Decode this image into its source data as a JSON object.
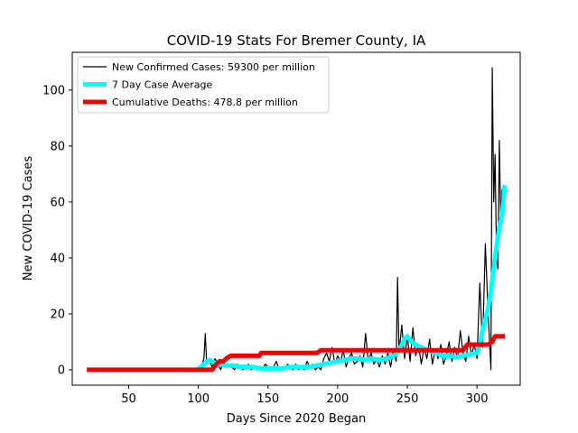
{
  "chart_data": {
    "type": "line",
    "title": "COVID-19 Stats For Bremer County, IA",
    "xlabel": "Days Since 2020 Began",
    "ylabel": "New COVID-19 Cases",
    "xlim": [
      9.5,
      331
    ],
    "ylim": [
      -5.5,
      113.5
    ],
    "xticks": [
      50,
      100,
      150,
      200,
      250,
      300
    ],
    "yticks": [
      0,
      20,
      40,
      60,
      80,
      100
    ],
    "grid": false,
    "legend_position": "top-left",
    "series": [
      {
        "name": "New Confirmed Cases: 59300 per million",
        "color": "#000000",
        "style": "thin",
        "x": [
          20,
          30,
          40,
          50,
          60,
          70,
          80,
          90,
          100,
          102,
          104,
          105,
          106,
          108,
          110,
          112,
          114,
          116,
          118,
          120,
          122,
          124,
          126,
          128,
          130,
          132,
          134,
          136,
          138,
          140,
          142,
          144,
          146,
          148,
          150,
          152,
          154,
          156,
          158,
          160,
          162,
          164,
          166,
          168,
          170,
          172,
          174,
          176,
          178,
          180,
          182,
          184,
          186,
          188,
          190,
          192,
          194,
          196,
          198,
          200,
          202,
          204,
          206,
          208,
          210,
          212,
          214,
          216,
          218,
          220,
          222,
          224,
          226,
          228,
          230,
          232,
          234,
          236,
          238,
          240,
          242,
          243,
          244,
          246,
          248,
          250,
          252,
          254,
          256,
          258,
          260,
          262,
          264,
          266,
          268,
          270,
          272,
          274,
          276,
          278,
          280,
          282,
          284,
          286,
          288,
          290,
          292,
          294,
          296,
          298,
          300,
          302,
          304,
          306,
          308,
          310,
          311,
          312,
          313,
          314,
          315,
          316,
          317,
          318,
          319,
          320
        ],
        "y": [
          0,
          0,
          0,
          0,
          0,
          0,
          0,
          0,
          0,
          1,
          4,
          13,
          2,
          3,
          1,
          4,
          2,
          0,
          3,
          1,
          2,
          1,
          0,
          2,
          1,
          0,
          1,
          2,
          0,
          1,
          0,
          1,
          0,
          2,
          1,
          0,
          1,
          3,
          0,
          1,
          0,
          2,
          1,
          0,
          2,
          0,
          1,
          0,
          3,
          1,
          2,
          0,
          1,
          0,
          4,
          6,
          3,
          8,
          2,
          5,
          3,
          7,
          1,
          4,
          6,
          2,
          3,
          5,
          1,
          13,
          3,
          6,
          2,
          4,
          1,
          5,
          2,
          6,
          1,
          7,
          3,
          33,
          6,
          16,
          4,
          12,
          3,
          15,
          5,
          9,
          2,
          8,
          4,
          11,
          2,
          7,
          4,
          9,
          2,
          5,
          10,
          3,
          8,
          4,
          14,
          6,
          3,
          12,
          5,
          9,
          4,
          31,
          8,
          45,
          20,
          0,
          108,
          60,
          77,
          40,
          36,
          82,
          55,
          64,
          66,
          64
        ]
      },
      {
        "name": "7 Day Case Average",
        "color": "#00ffff",
        "style": "thick",
        "x": [
          100,
          102,
          104,
          106,
          108,
          110,
          112,
          114,
          116,
          120,
          125,
          130,
          135,
          140,
          145,
          150,
          155,
          160,
          165,
          170,
          175,
          180,
          185,
          190,
          195,
          200,
          205,
          210,
          215,
          220,
          225,
          230,
          235,
          240,
          243,
          246,
          248,
          250,
          253,
          256,
          260,
          265,
          270,
          275,
          280,
          285,
          290,
          295,
          300,
          302,
          304,
          306,
          308,
          310,
          312,
          314,
          316,
          318,
          320
        ],
        "y": [
          0.5,
          1,
          2,
          3,
          3.5,
          3,
          2.5,
          2,
          2,
          1.5,
          1.5,
          1,
          1,
          1,
          0.5,
          0.5,
          0.5,
          0.5,
          1,
          1,
          1,
          1,
          1.5,
          2,
          2.5,
          3,
          3.5,
          4,
          4,
          3.5,
          4,
          3.5,
          4,
          5,
          6,
          9,
          11,
          12,
          10,
          9,
          8,
          7,
          6,
          5,
          5,
          4.5,
          5,
          5.5,
          6,
          9,
          14,
          18,
          22,
          28,
          36,
          44,
          51,
          55,
          66
        ]
      },
      {
        "name": "Cumulative Deaths: 478.8 per million",
        "color": "#ee0000",
        "style": "thick",
        "x": [
          20,
          30,
          40,
          50,
          60,
          70,
          80,
          90,
          100,
          110,
          113,
          115,
          118,
          120,
          123,
          125,
          130,
          135,
          140,
          144,
          145,
          150,
          155,
          160,
          165,
          170,
          175,
          180,
          185,
          188,
          190,
          195,
          200,
          210,
          220,
          230,
          240,
          250,
          260,
          270,
          280,
          290,
          293,
          295,
          300,
          305,
          308,
          311,
          313,
          315,
          320
        ],
        "y": [
          0,
          0,
          0,
          0,
          0,
          0,
          0,
          0,
          0,
          0,
          2,
          3,
          3,
          4,
          5,
          5,
          5,
          5,
          5,
          5,
          6,
          6,
          6,
          6,
          6,
          6,
          6,
          6,
          6,
          7,
          7,
          7,
          7,
          7,
          7,
          7,
          7,
          7,
          7,
          7,
          7,
          7,
          9,
          9,
          9,
          9,
          9,
          10,
          12,
          12,
          12
        ]
      }
    ]
  }
}
